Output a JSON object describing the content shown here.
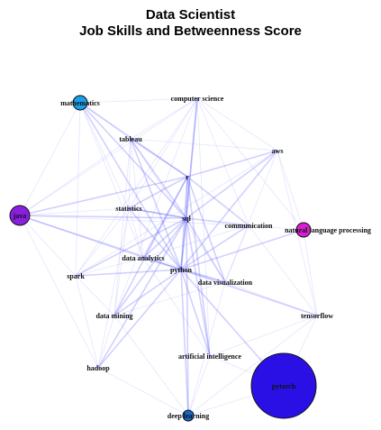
{
  "title": {
    "line1": "Data Scientist",
    "line2": "Job Skills and Betweenness Score"
  },
  "graph": {
    "edge_color": "#5b5bff",
    "nodes": [
      {
        "id": "mathematics",
        "label": "mathematics",
        "color": "#1aa0ea"
      },
      {
        "id": "computer_science",
        "label": "computer science",
        "color": null
      },
      {
        "id": "tableau",
        "label": "tableau",
        "color": null
      },
      {
        "id": "aws",
        "label": "aws",
        "color": null
      },
      {
        "id": "r",
        "label": "r",
        "color": null
      },
      {
        "id": "java",
        "label": "java",
        "color": "#8a1fe0"
      },
      {
        "id": "statistics",
        "label": "statistics",
        "color": null
      },
      {
        "id": "sql",
        "label": "sql",
        "color": null
      },
      {
        "id": "communication",
        "label": "communication",
        "color": null
      },
      {
        "id": "nlp",
        "label": "natural language processing",
        "color": "#d91fd3"
      },
      {
        "id": "data_analytics",
        "label": "data analytics",
        "color": null
      },
      {
        "id": "python",
        "label": "python",
        "color": null
      },
      {
        "id": "spark",
        "label": "spark",
        "color": null
      },
      {
        "id": "data_visualization",
        "label": "data visualization",
        "color": null
      },
      {
        "id": "data_mining",
        "label": "data mining",
        "color": null
      },
      {
        "id": "tensorflow",
        "label": "tensorflow",
        "color": null
      },
      {
        "id": "artificial_intelligence",
        "label": "artificial intelligence",
        "color": null
      },
      {
        "id": "hadoop",
        "label": "hadoop",
        "color": null
      },
      {
        "id": "pytorch",
        "label": "pytorch",
        "color": "#2b10e6"
      },
      {
        "id": "deep_learning",
        "label": "deep learning",
        "color": "#1565c8"
      }
    ],
    "edges": [
      [
        "python",
        "sql"
      ],
      [
        "python",
        "r"
      ],
      [
        "sql",
        "r"
      ],
      [
        "python",
        "data_analytics"
      ],
      [
        "python",
        "data_visualization"
      ],
      [
        "sql",
        "data_visualization"
      ],
      [
        "sql",
        "data_analytics"
      ],
      [
        "r",
        "statistics"
      ],
      [
        "python",
        "statistics"
      ],
      [
        "sql",
        "statistics"
      ],
      [
        "python",
        "tableau"
      ],
      [
        "sql",
        "tableau"
      ],
      [
        "r",
        "tableau"
      ],
      [
        "python",
        "java"
      ],
      [
        "sql",
        "java"
      ],
      [
        "r",
        "java"
      ],
      [
        "python",
        "spark"
      ],
      [
        "python",
        "aws"
      ],
      [
        "sql",
        "aws"
      ],
      [
        "python",
        "communication"
      ],
      [
        "sql",
        "communication"
      ],
      [
        "r",
        "communication"
      ],
      [
        "python",
        "mathematics"
      ],
      [
        "r",
        "mathematics"
      ],
      [
        "python",
        "computer_science"
      ],
      [
        "sql",
        "computer_science"
      ],
      [
        "python",
        "hadoop"
      ],
      [
        "spark",
        "hadoop"
      ],
      [
        "python",
        "data_mining"
      ],
      [
        "sql",
        "data_mining"
      ],
      [
        "python",
        "tensorflow"
      ],
      [
        "python",
        "pytorch"
      ],
      [
        "tensorflow",
        "pytorch"
      ],
      [
        "python",
        "artificial_intelligence"
      ],
      [
        "python",
        "deep_learning"
      ],
      [
        "tensorflow",
        "deep_learning"
      ],
      [
        "python",
        "nlp"
      ],
      [
        "data_analytics",
        "data_visualization"
      ],
      [
        "data_analytics",
        "tableau"
      ],
      [
        "data_visualization",
        "tableau"
      ],
      [
        "statistics",
        "mathematics"
      ],
      [
        "java",
        "spark"
      ],
      [
        "java",
        "hadoop"
      ],
      [
        "java",
        "statistics"
      ],
      [
        "java",
        "data_analytics"
      ],
      [
        "aws",
        "spark"
      ],
      [
        "aws",
        "data_visualization"
      ],
      [
        "computer_science",
        "mathematics"
      ],
      [
        "computer_science",
        "statistics"
      ],
      [
        "computer_science",
        "data_mining"
      ],
      [
        "artificial_intelligence",
        "deep_learning"
      ],
      [
        "artificial_intelligence",
        "tensorflow"
      ],
      [
        "data_mining",
        "hadoop"
      ],
      [
        "data_mining",
        "statistics"
      ],
      [
        "communication",
        "data_visualization"
      ],
      [
        "statistics",
        "data_analytics"
      ],
      [
        "r",
        "data_visualization"
      ],
      [
        "r",
        "data_analytics"
      ],
      [
        "sql",
        "spark"
      ],
      [
        "sql",
        "hadoop"
      ],
      [
        "r",
        "data_mining"
      ],
      [
        "r",
        "aws"
      ],
      [
        "mathematics",
        "java"
      ],
      [
        "tableau",
        "statistics"
      ],
      [
        "tableau",
        "data_mining"
      ],
      [
        "tableau",
        "computer_science"
      ],
      [
        "spark",
        "data_analytics"
      ],
      [
        "spark",
        "data_mining"
      ],
      [
        "hadoop",
        "deep_learning"
      ],
      [
        "deep_learning",
        "data_mining"
      ],
      [
        "tensorflow",
        "data_visualization"
      ],
      [
        "tensorflow",
        "nlp"
      ],
      [
        "nlp",
        "communication"
      ],
      [
        "nlp",
        "computer_science"
      ],
      [
        "nlp",
        "aws"
      ],
      [
        "aws",
        "tensorflow"
      ],
      [
        "aws",
        "computer_science"
      ],
      [
        "communication",
        "computer_science"
      ],
      [
        "artificial_intelligence",
        "computer_science"
      ],
      [
        "data_visualization",
        "data_mining"
      ],
      [
        "data_visualization",
        "deep_learning"
      ],
      [
        "pytorch",
        "artificial_intelligence"
      ],
      [
        "pytorch",
        "deep_learning"
      ],
      [
        "java",
        "tableau"
      ],
      [
        "java",
        "computer_science"
      ],
      [
        "mathematics",
        "tableau"
      ],
      [
        "mathematics",
        "data_analytics"
      ],
      [
        "spark",
        "statistics"
      ],
      [
        "hadoop",
        "statistics"
      ],
      [
        "artificial_intelligence",
        "data_analytics"
      ],
      [
        "communication",
        "tensorflow"
      ],
      [
        "communication",
        "data_analytics"
      ],
      [
        "statistics",
        "sql"
      ],
      [
        "deep_learning",
        "sql"
      ],
      [
        "artificial_intelligence",
        "sql"
      ],
      [
        "artificial_intelligence",
        "r"
      ],
      [
        "mathematics",
        "sql"
      ],
      [
        "mathematics",
        "spark"
      ],
      [
        "tableau",
        "aws"
      ],
      [
        "java",
        "communication"
      ],
      [
        "java",
        "data_visualization"
      ],
      [
        "spark",
        "computer_science"
      ]
    ]
  }
}
